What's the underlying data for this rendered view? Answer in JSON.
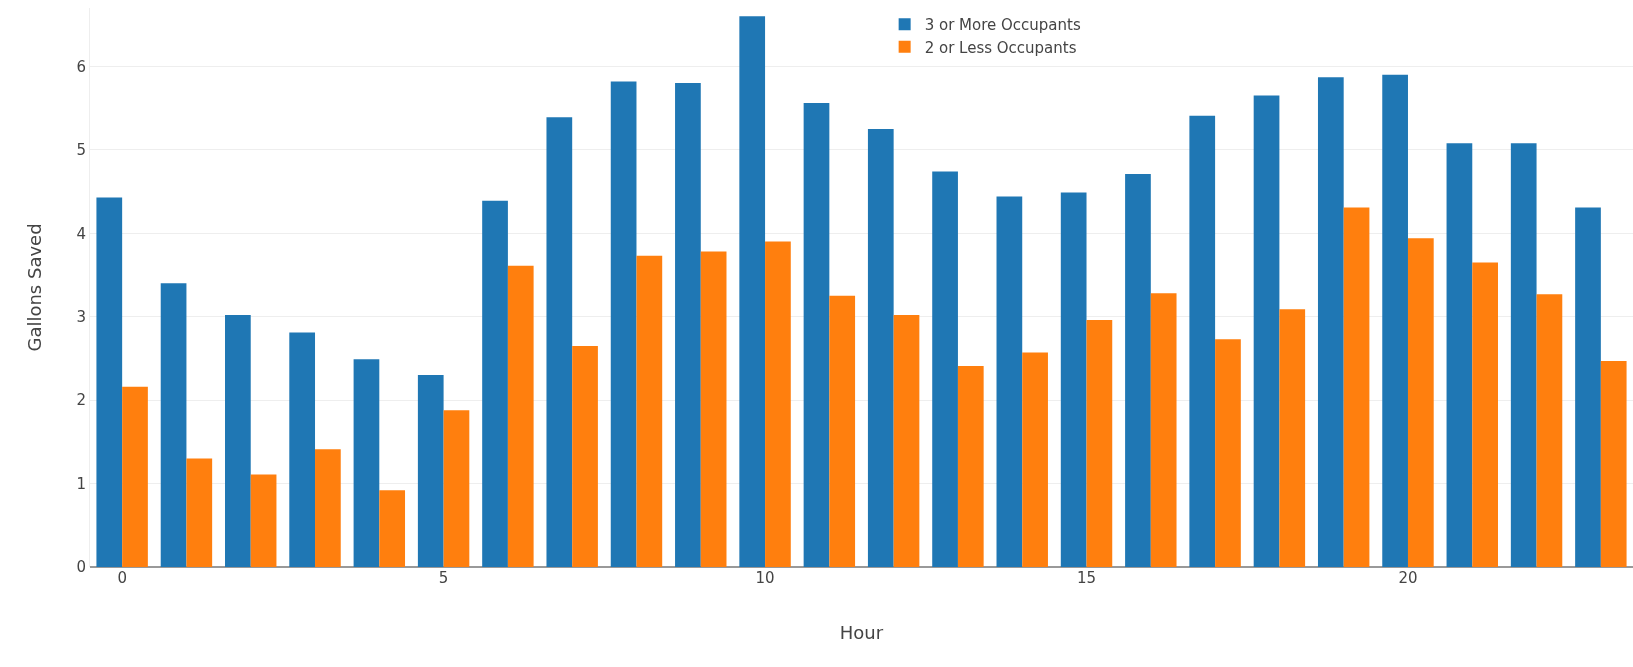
{
  "chart_data": {
    "type": "bar",
    "xlabel": "Hour",
    "ylabel": "Gallons Saved",
    "x": [
      0,
      1,
      2,
      3,
      4,
      5,
      6,
      7,
      8,
      9,
      10,
      11,
      12,
      13,
      14,
      15,
      16,
      17,
      18,
      19,
      20,
      21,
      22,
      23
    ],
    "series": [
      {
        "name": "3 or More Occupants",
        "color": "#1f77b4",
        "values": [
          4.43,
          3.4,
          3.02,
          2.81,
          2.49,
          2.3,
          4.39,
          5.39,
          5.82,
          5.8,
          6.6,
          5.56,
          5.25,
          4.74,
          4.44,
          4.49,
          4.71,
          5.41,
          5.65,
          5.87,
          5.9,
          5.08,
          5.08,
          4.31
        ]
      },
      {
        "name": "2 or Less Occupants",
        "color": "#ff7f0e",
        "values": [
          2.16,
          1.3,
          1.11,
          1.41,
          0.92,
          1.88,
          3.61,
          2.65,
          3.73,
          3.78,
          3.9,
          3.25,
          3.02,
          2.41,
          2.57,
          2.96,
          3.28,
          2.73,
          3.09,
          4.31,
          3.94,
          3.65,
          3.27,
          2.47
        ]
      }
    ],
    "xlim": [
      -0.5,
      23.5
    ],
    "xticks": [
      0,
      5,
      10,
      15,
      20
    ],
    "ylim": [
      0,
      6.7
    ],
    "yticks": [
      0,
      1,
      2,
      3,
      4,
      5,
      6
    ],
    "grid": "y",
    "legend": "top right"
  }
}
